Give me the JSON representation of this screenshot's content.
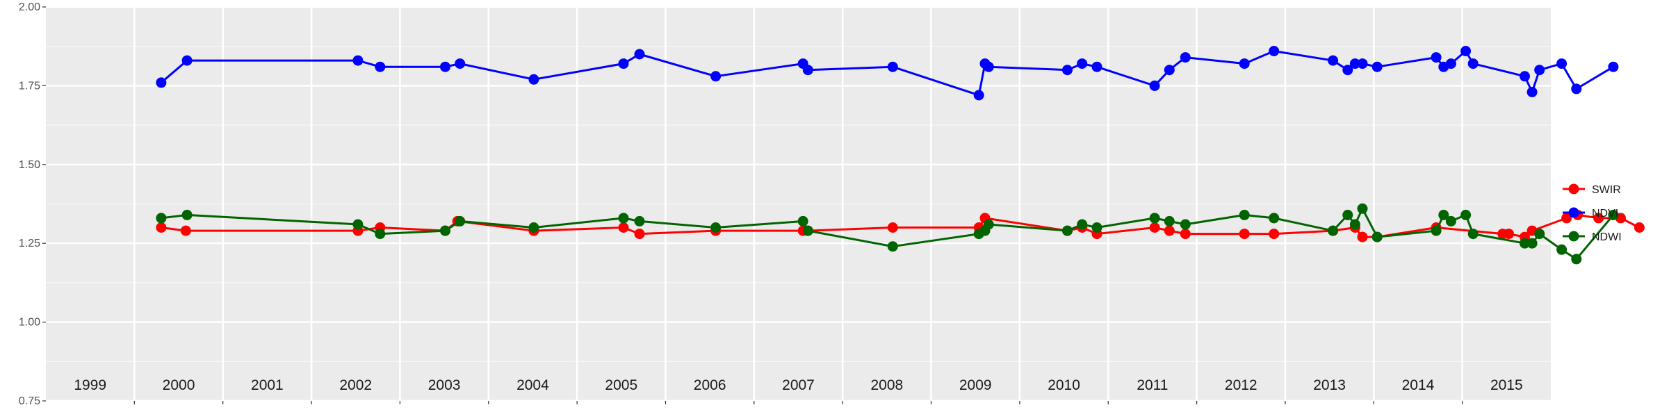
{
  "chart_data": {
    "type": "line",
    "title": "",
    "xlabel": "",
    "ylabel": "",
    "ylim": [
      0.75,
      2.0
    ],
    "y_ticks": [
      "0.75",
      "1.00",
      "1.25",
      "1.50",
      "1.75",
      "2.00"
    ],
    "grid": true,
    "legend_position": "right",
    "year_labels": [
      "1999",
      "2000",
      "2001",
      "2002",
      "2003",
      "2004",
      "2005",
      "2006",
      "2007",
      "2008",
      "2009",
      "2010",
      "2011",
      "2012",
      "2013",
      "2014",
      "2015"
    ],
    "series": [
      {
        "name": "SWIR",
        "color": "#ff0000",
        "x": [
          "1999-10-20",
          "2000-01-30",
          "2002-01-10",
          "2002-04-10",
          "2003-01-05",
          "2003-02-25",
          "2004-01-05",
          "2005-01-10",
          "2005-03-15",
          "2006-01-25",
          "2007-01-20",
          "2007-02-10",
          "2008-01-25",
          "2009-01-15",
          "2009-02-10",
          "2010-01-15",
          "2010-03-15",
          "2010-05-15",
          "2011-01-10",
          "2011-03-10",
          "2011-05-15",
          "2012-01-15",
          "2012-05-15",
          "2013-01-15",
          "2013-04-15",
          "2013-05-15",
          "2013-07-15",
          "2014-03-15",
          "2014-12-15",
          "2015-01-10",
          "2015-03-15",
          "2015-04-15",
          "2015-09-05",
          "2015-10-20",
          "2016-01-15",
          "2016-04-15",
          "2016-07-01"
        ],
        "values": [
          1.3,
          1.29,
          1.29,
          1.3,
          1.29,
          1.32,
          1.29,
          1.3,
          1.28,
          1.29,
          1.29,
          1.29,
          1.3,
          1.3,
          1.33,
          1.29,
          1.3,
          1.28,
          1.3,
          1.29,
          1.28,
          1.28,
          1.28,
          1.29,
          1.3,
          1.27,
          1.27,
          1.3,
          1.28,
          1.28,
          1.27,
          1.29,
          1.33,
          1.34,
          1.33,
          1.33,
          1.3
        ]
      },
      {
        "name": "NDVI",
        "color": "#0000ff",
        "x": [
          "1999-10-20",
          "2000-02-05",
          "2002-01-10",
          "2002-04-10",
          "2003-01-05",
          "2003-03-05",
          "2004-01-05",
          "2005-01-10",
          "2005-03-15",
          "2006-01-25",
          "2007-01-20",
          "2007-02-10",
          "2008-01-25",
          "2009-01-15",
          "2009-02-10",
          "2009-02-25",
          "2010-01-15",
          "2010-03-15",
          "2010-05-15",
          "2011-01-10",
          "2011-03-10",
          "2011-05-15",
          "2012-01-15",
          "2012-05-15",
          "2013-01-15",
          "2013-03-15",
          "2013-04-15",
          "2013-05-15",
          "2013-07-15",
          "2014-03-15",
          "2014-04-15",
          "2014-05-15",
          "2014-07-15",
          "2014-08-15",
          "2015-03-15",
          "2015-04-15",
          "2015-05-15",
          "2015-08-15",
          "2015-10-15",
          "2016-03-15"
        ],
        "values": [
          1.76,
          1.83,
          1.83,
          1.81,
          1.81,
          1.82,
          1.77,
          1.82,
          1.85,
          1.78,
          1.82,
          1.8,
          1.81,
          1.72,
          1.82,
          1.81,
          1.8,
          1.82,
          1.81,
          1.75,
          1.8,
          1.84,
          1.82,
          1.86,
          1.83,
          1.8,
          1.82,
          1.82,
          1.81,
          1.84,
          1.81,
          1.82,
          1.86,
          1.82,
          1.78,
          1.73,
          1.8,
          1.82,
          1.74,
          1.81
        ]
      },
      {
        "name": "NDWI",
        "color": "#006400",
        "x": [
          "1999-10-20",
          "2000-02-05",
          "2002-01-10",
          "2002-04-10",
          "2003-01-05",
          "2003-03-05",
          "2004-01-05",
          "2005-01-10",
          "2005-03-15",
          "2006-01-25",
          "2007-01-20",
          "2007-02-10",
          "2008-01-25",
          "2009-01-15",
          "2009-02-10",
          "2009-02-25",
          "2010-01-15",
          "2010-03-15",
          "2010-05-15",
          "2011-01-10",
          "2011-03-10",
          "2011-05-15",
          "2012-01-15",
          "2012-05-15",
          "2013-01-15",
          "2013-03-15",
          "2013-04-15",
          "2013-05-15",
          "2013-07-15",
          "2014-03-15",
          "2014-04-15",
          "2014-05-15",
          "2014-07-15",
          "2014-08-15",
          "2015-03-15",
          "2015-04-15",
          "2015-05-15",
          "2015-08-15",
          "2015-10-15",
          "2016-03-15"
        ],
        "values": [
          1.33,
          1.34,
          1.31,
          1.28,
          1.29,
          1.32,
          1.3,
          1.33,
          1.32,
          1.3,
          1.32,
          1.29,
          1.24,
          1.28,
          1.29,
          1.31,
          1.29,
          1.31,
          1.3,
          1.33,
          1.32,
          1.31,
          1.34,
          1.33,
          1.29,
          1.34,
          1.31,
          1.36,
          1.27,
          1.29,
          1.34,
          1.32,
          1.34,
          1.28,
          1.25,
          1.25,
          1.28,
          1.23,
          1.2,
          1.34
        ]
      }
    ]
  }
}
